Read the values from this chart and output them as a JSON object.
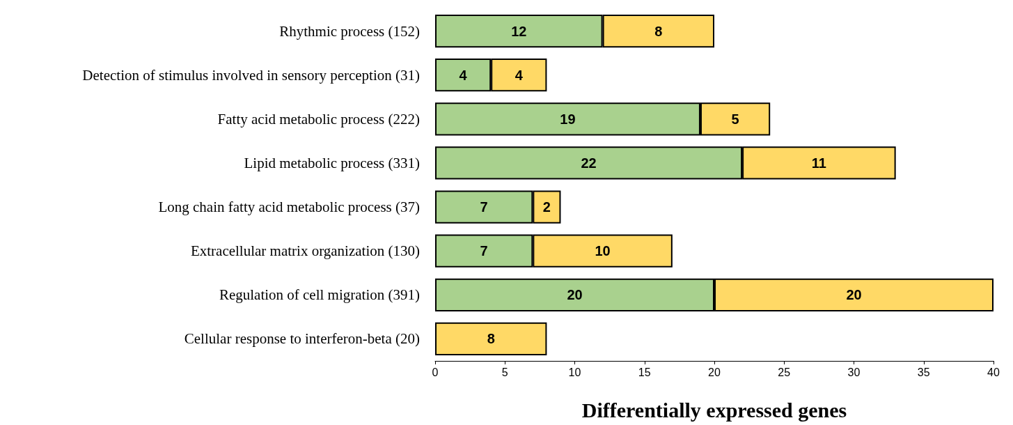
{
  "chart_data": {
    "type": "bar",
    "orientation": "horizontal",
    "stacked": true,
    "xlabel": "Differentially expressed genes",
    "categories": [
      "Rhythmic process (152)",
      "Detection of stimulus involved in sensory perception (31)",
      "Fatty acid metabolic process (222)",
      "Lipid metabolic process (331)",
      "Long chain fatty acid metabolic process (37)",
      "Extracellular matrix organization (130)",
      "Regulation of cell migration (391)",
      "Cellular response to interferon-beta (20)"
    ],
    "series": [
      {
        "color": "#a9d18e",
        "values": [
          12,
          4,
          19,
          22,
          7,
          7,
          20,
          null
        ]
      },
      {
        "color": "#ffd966",
        "values": [
          8,
          4,
          5,
          11,
          2,
          10,
          20,
          8
        ]
      }
    ],
    "xlim": [
      0,
      40
    ],
    "xticks": [
      0,
      5,
      10,
      15,
      20,
      25,
      30,
      35,
      40
    ],
    "data_labels": true,
    "grid": false
  }
}
